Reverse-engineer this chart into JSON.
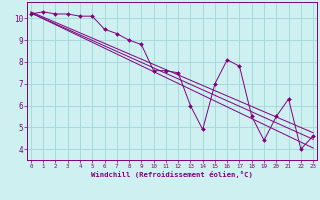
{
  "xlabel": "Windchill (Refroidissement éolien,°C)",
  "background_color": "#cff0f0",
  "line_color": "#800080",
  "grid_color": "#a0d8d8",
  "x_ticks": [
    0,
    1,
    2,
    3,
    4,
    5,
    6,
    7,
    8,
    9,
    10,
    11,
    12,
    13,
    14,
    15,
    16,
    17,
    18,
    19,
    20,
    21,
    22,
    23
  ],
  "y_ticks": [
    4,
    5,
    6,
    7,
    8,
    9,
    10
  ],
  "ylim": [
    3.5,
    10.75
  ],
  "xlim": [
    -0.3,
    23.3
  ],
  "series1": [
    10.2,
    10.3,
    10.2,
    10.2,
    10.1,
    10.1,
    9.5,
    9.3,
    9.0,
    8.8,
    7.6,
    7.6,
    7.5,
    6.0,
    4.9,
    7.0,
    8.1,
    7.8,
    5.5,
    4.4,
    5.5,
    6.3,
    4.0,
    4.6
  ],
  "trend1_x": [
    0,
    23
  ],
  "trend1_y": [
    10.25,
    4.05
  ],
  "trend2_x": [
    0,
    23
  ],
  "trend2_y": [
    10.25,
    4.45
  ],
  "trend3_x": [
    0,
    23
  ],
  "trend3_y": [
    10.3,
    4.75
  ]
}
